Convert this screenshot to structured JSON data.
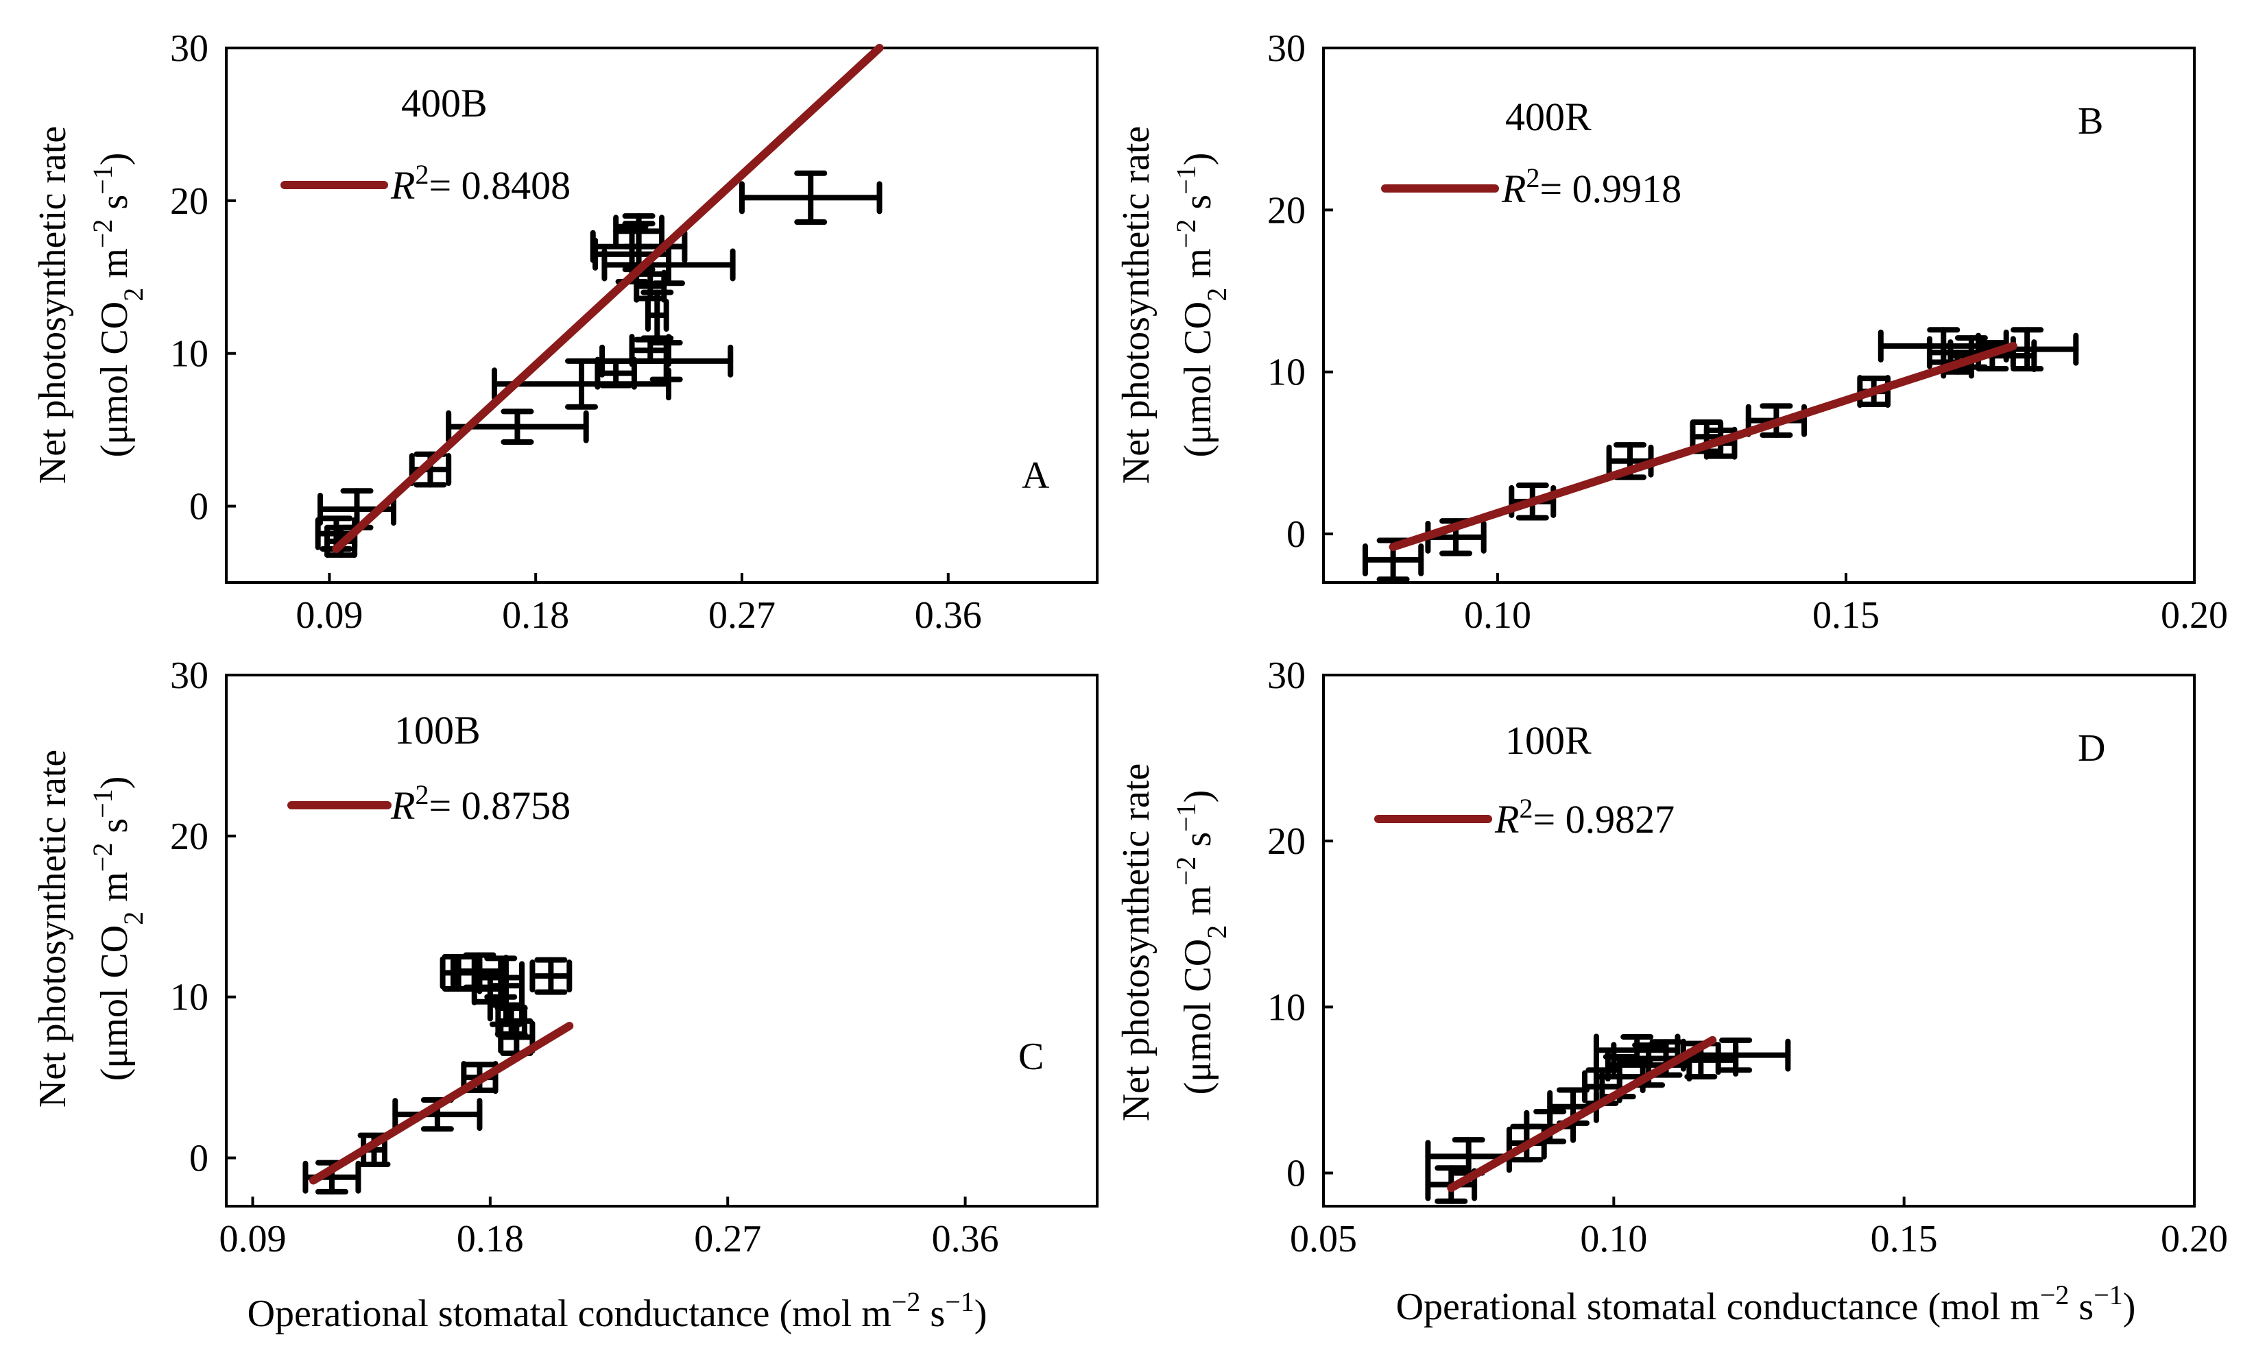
{
  "figure": {
    "xlabel_bottom": "Operational stomatal conductance (mol m",
    "xlabel_sup1": "−2",
    "xlabel_mid": " s",
    "xlabel_sup2": "−1",
    "xlabel_end": ")",
    "ylabel_line1": "Net photosynthetic rate",
    "ylabel_line2_a": "(μmol CO",
    "ylabel_line2_sub": "2",
    "ylabel_line2_b": " m",
    "ylabel_line2_sup1": "−2",
    "ylabel_line2_c": " s",
    "ylabel_line2_sup2": "−1",
    "ylabel_line2_d": ")"
  },
  "colors": {
    "fit_line": "#8b1a1a",
    "points": "#000000",
    "axes": "#000000"
  },
  "chart_data": [
    {
      "id": "A",
      "type": "scatter",
      "title": "400B",
      "panel_letter": "A",
      "legend": {
        "r2_symbol": "R",
        "r2_sup": "2",
        "r2_value": "= 0.8408"
      },
      "xlim": [
        0.045,
        0.425
      ],
      "ylim": [
        -5,
        30
      ],
      "xticks": [
        0.09,
        0.18,
        0.27,
        0.36
      ],
      "xtick_labels": [
        "0.09",
        "0.18",
        "0.27",
        "0.36"
      ],
      "yticks": [
        0,
        10,
        20,
        30
      ],
      "ytick_labels": [
        "0",
        "10",
        "20",
        "30"
      ],
      "fit": {
        "x": [
          0.093,
          0.33
        ],
        "y": [
          -2.8,
          30
        ]
      },
      "points": [
        {
          "x": 0.093,
          "y": -1.8,
          "xerr": 0.008,
          "yerr": 1.0
        },
        {
          "x": 0.095,
          "y": -2.3,
          "xerr": 0.006,
          "yerr": 0.9
        },
        {
          "x": 0.102,
          "y": -0.2,
          "xerr": 0.016,
          "yerr": 1.2
        },
        {
          "x": 0.134,
          "y": 2.4,
          "xerr": 0.008,
          "yerr": 1.0
        },
        {
          "x": 0.172,
          "y": 5.2,
          "xerr": 0.03,
          "yerr": 1.0
        },
        {
          "x": 0.2,
          "y": 8.0,
          "xerr": 0.038,
          "yerr": 1.5
        },
        {
          "x": 0.215,
          "y": 8.7,
          "xerr": 0.008,
          "yerr": 0.8
        },
        {
          "x": 0.237,
          "y": 9.5,
          "xerr": 0.028,
          "yerr": 1.2
        },
        {
          "x": 0.23,
          "y": 10.2,
          "xerr": 0.008,
          "yerr": 0.7
        },
        {
          "x": 0.233,
          "y": 12.5,
          "xerr": 0.004,
          "yerr": 1.5
        },
        {
          "x": 0.222,
          "y": 16.5,
          "xerr": 0.016,
          "yerr": 1.8
        },
        {
          "x": 0.225,
          "y": 17.0,
          "xerr": 0.02,
          "yerr": 1.5
        },
        {
          "x": 0.225,
          "y": 18.0,
          "xerr": 0.01,
          "yerr": 1.0
        },
        {
          "x": 0.238,
          "y": 15.8,
          "xerr": 0.028,
          "yerr": 1.2
        },
        {
          "x": 0.23,
          "y": 14.4,
          "xerr": 0.006,
          "yerr": 0.8
        },
        {
          "x": 0.3,
          "y": 20.2,
          "xerr": 0.03,
          "yerr": 1.6
        }
      ]
    },
    {
      "id": "B",
      "type": "scatter",
      "title": "400R",
      "panel_letter": "B",
      "legend": {
        "r2_symbol": "R",
        "r2_sup": "2",
        "r2_value": "= 0.9918"
      },
      "xlim": [
        0.075,
        0.2
      ],
      "ylim": [
        -3,
        30
      ],
      "xticks": [
        0.1,
        0.15,
        0.2
      ],
      "xtick_labels": [
        "0.10",
        "0.15",
        "0.20"
      ],
      "yticks": [
        0,
        10,
        20,
        30
      ],
      "ytick_labels": [
        "0",
        "10",
        "20",
        "30"
      ],
      "fit": {
        "x": [
          0.085,
          0.174
        ],
        "y": [
          -0.8,
          11.6
        ]
      },
      "points": [
        {
          "x": 0.085,
          "y": -1.6,
          "xerr": 0.004,
          "yerr": 1.2
        },
        {
          "x": 0.094,
          "y": -0.2,
          "xerr": 0.004,
          "yerr": 1.0
        },
        {
          "x": 0.105,
          "y": 2.0,
          "xerr": 0.003,
          "yerr": 1.0
        },
        {
          "x": 0.119,
          "y": 4.5,
          "xerr": 0.003,
          "yerr": 1.0
        },
        {
          "x": 0.13,
          "y": 6.0,
          "xerr": 0.002,
          "yerr": 0.9
        },
        {
          "x": 0.132,
          "y": 5.6,
          "xerr": 0.002,
          "yerr": 0.8
        },
        {
          "x": 0.14,
          "y": 7.0,
          "xerr": 0.004,
          "yerr": 0.9
        },
        {
          "x": 0.154,
          "y": 8.8,
          "xerr": 0.002,
          "yerr": 0.8
        },
        {
          "x": 0.164,
          "y": 11.6,
          "xerr": 0.009,
          "yerr": 1.0
        },
        {
          "x": 0.168,
          "y": 11.2,
          "xerr": 0.006,
          "yerr": 0.9
        },
        {
          "x": 0.171,
          "y": 11.0,
          "xerr": 0.006,
          "yerr": 0.8
        },
        {
          "x": 0.176,
          "y": 11.4,
          "xerr": 0.007,
          "yerr": 1.2
        },
        {
          "x": 0.166,
          "y": 10.6,
          "xerr": 0.002,
          "yerr": 0.6
        }
      ]
    },
    {
      "id": "C",
      "type": "scatter",
      "title": "100B",
      "panel_letter": "C",
      "legend": {
        "r2_symbol": "R",
        "r2_sup": "2",
        "r2_value": "= 0.8758"
      },
      "xlim": [
        0.08,
        0.41
      ],
      "ylim": [
        -3,
        30
      ],
      "xticks": [
        0.09,
        0.18,
        0.27,
        0.36
      ],
      "xtick_labels": [
        "0.09",
        "0.18",
        "0.27",
        "0.36"
      ],
      "yticks": [
        0,
        10,
        20,
        30
      ],
      "ytick_labels": [
        "0",
        "10",
        "20",
        "30"
      ],
      "fit": {
        "x": [
          0.113,
          0.21
        ],
        "y": [
          -1.4,
          8.2
        ]
      },
      "points": [
        {
          "x": 0.12,
          "y": -1.2,
          "xerr": 0.01,
          "yerr": 0.9
        },
        {
          "x": 0.136,
          "y": 0.5,
          "xerr": 0.004,
          "yerr": 0.9
        },
        {
          "x": 0.16,
          "y": 2.7,
          "xerr": 0.016,
          "yerr": 0.9
        },
        {
          "x": 0.176,
          "y": 5.0,
          "xerr": 0.006,
          "yerr": 0.8
        },
        {
          "x": 0.19,
          "y": 7.5,
          "xerr": 0.006,
          "yerr": 1.0
        },
        {
          "x": 0.188,
          "y": 8.5,
          "xerr": 0.005,
          "yerr": 0.8
        },
        {
          "x": 0.186,
          "y": 9.5,
          "xerr": 0.006,
          "yerr": 1.2
        },
        {
          "x": 0.18,
          "y": 10.5,
          "xerr": 0.006,
          "yerr": 0.8
        },
        {
          "x": 0.168,
          "y": 11.5,
          "xerr": 0.006,
          "yerr": 1.0
        },
        {
          "x": 0.176,
          "y": 11.6,
          "xerr": 0.01,
          "yerr": 1.0
        },
        {
          "x": 0.184,
          "y": 11.2,
          "xerr": 0.008,
          "yerr": 1.2
        },
        {
          "x": 0.203,
          "y": 11.3,
          "xerr": 0.007,
          "yerr": 1.0
        }
      ]
    },
    {
      "id": "D",
      "type": "scatter",
      "title": "100R",
      "panel_letter": "D",
      "legend": {
        "r2_symbol": "R",
        "r2_sup": "2",
        "r2_value": "= 0.9827"
      },
      "xlim": [
        0.05,
        0.2
      ],
      "ylim": [
        -2,
        30
      ],
      "xticks": [
        0.05,
        0.1,
        0.15,
        0.2
      ],
      "xtick_labels": [
        "0.05",
        "0.10",
        "0.15",
        "0.20"
      ],
      "yticks": [
        0,
        10,
        20,
        30
      ],
      "ytick_labels": [
        "0",
        "10",
        "20",
        "30"
      ],
      "fit": {
        "x": [
          0.072,
          0.117
        ],
        "y": [
          -0.9,
          8.0
        ]
      },
      "points": [
        {
          "x": 0.072,
          "y": -0.7,
          "xerr": 0.004,
          "yerr": 1.0
        },
        {
          "x": 0.075,
          "y": 1.0,
          "xerr": 0.007,
          "yerr": 1.0
        },
        {
          "x": 0.085,
          "y": 1.8,
          "xerr": 0.003,
          "yerr": 1.0
        },
        {
          "x": 0.089,
          "y": 2.8,
          "xerr": 0.004,
          "yerr": 0.9
        },
        {
          "x": 0.093,
          "y": 4.0,
          "xerr": 0.004,
          "yerr": 1.0
        },
        {
          "x": 0.098,
          "y": 5.2,
          "xerr": 0.003,
          "yerr": 1.0
        },
        {
          "x": 0.101,
          "y": 5.8,
          "xerr": 0.004,
          "yerr": 1.2
        },
        {
          "x": 0.106,
          "y": 6.5,
          "xerr": 0.007,
          "yerr": 1.2
        },
        {
          "x": 0.109,
          "y": 6.9,
          "xerr": 0.009,
          "yerr": 1.0
        },
        {
          "x": 0.115,
          "y": 6.8,
          "xerr": 0.006,
          "yerr": 1.0
        },
        {
          "x": 0.121,
          "y": 7.1,
          "xerr": 0.009,
          "yerr": 0.9
        },
        {
          "x": 0.104,
          "y": 7.4,
          "xerr": 0.007,
          "yerr": 0.8
        }
      ]
    }
  ]
}
